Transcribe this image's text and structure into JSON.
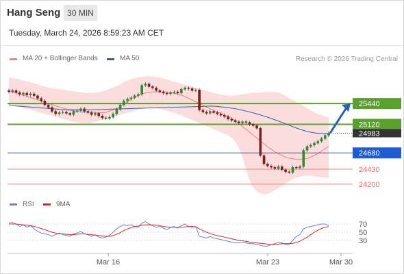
{
  "header": {
    "title": "Hang Seng",
    "timeframe": "30 MIN",
    "datetime": "Tuesday, March 24, 2026 8:59:23 AM CET"
  },
  "legend": {
    "bollinger": "MA 20 + Bollinger Bands",
    "ma50": "MA 50",
    "copyright": "Research © 2026 Trading Central"
  },
  "rsi_legend": {
    "rsi": "RSI",
    "ma": "9MA"
  },
  "colors": {
    "bollinger": "#f47e7e",
    "ma50": "#2b5fa6",
    "resistance": "#5aa02c",
    "pivot": "#1e5bd6",
    "support": "#e56a6a",
    "candle_up": "#2e8b2e",
    "candle_down": "#7a1f1f",
    "arrow": "#2a62b0",
    "last_price": "#333333",
    "rsi_line": "#5b86d9",
    "rsi_ma": "#e02424"
  },
  "chart_data": [
    {
      "type": "candlestick",
      "title": "Hang Seng",
      "timeframe": "30 MIN",
      "x_tick_labels": [
        "Mar 16",
        "Mar 23",
        "Mar 30"
      ],
      "ylim": [
        24050,
        26000
      ],
      "levels": [
        {
          "label": "25440",
          "value": 25440,
          "kind": "resistance"
        },
        {
          "label": "25120",
          "value": 25120,
          "kind": "resistance"
        },
        {
          "label": "24983",
          "value": 24983,
          "kind": "last"
        },
        {
          "label": "24680",
          "value": 24680,
          "kind": "pivot"
        },
        {
          "label": "24430",
          "value": 24430,
          "kind": "support"
        },
        {
          "label": "24200",
          "value": 24200,
          "kind": "support"
        }
      ],
      "close": [
        25620,
        25640,
        25610,
        25580,
        25600,
        25570,
        25590,
        25560,
        25520,
        25480,
        25420,
        25380,
        25320,
        25280,
        25300,
        25310,
        25290,
        25270,
        25320,
        25330,
        25360,
        25320,
        25300,
        25270,
        25290,
        25250,
        25220,
        25210,
        25230,
        25280,
        25350,
        25420,
        25480,
        25510,
        25530,
        25560,
        25580,
        25720,
        25740,
        25700,
        25680,
        25640,
        25620,
        25600,
        25590,
        25610,
        25620,
        25600,
        25660,
        25680,
        25670,
        25640,
        25650,
        25340,
        25310,
        25290,
        25320,
        25300,
        25280,
        25260,
        25240,
        25200,
        25180,
        25160,
        25140,
        25160,
        25150,
        25120,
        25100,
        25060,
        24640,
        24510,
        24480,
        24460,
        24440,
        24470,
        24420,
        24390,
        24380,
        24460,
        24450,
        24470,
        24720,
        24780,
        24800,
        24830,
        24860,
        24900,
        24950,
        24983
      ],
      "bb_mid": [
        25640,
        25620,
        25600,
        25580,
        25560,
        25540,
        25520,
        25500,
        25480,
        25460,
        25440,
        25420,
        25400,
        25380,
        25360,
        25340,
        25330,
        25320,
        25310,
        25310,
        25310,
        25310,
        25300,
        25300,
        25300,
        25320,
        25340,
        25360,
        25400,
        25440,
        25480,
        25520,
        25550,
        25580,
        25600,
        25610,
        25620,
        25620,
        25620,
        25620,
        25610,
        25600,
        25590,
        25570,
        25550,
        25520,
        25490,
        25460,
        25430,
        25400,
        25370,
        25340,
        25310,
        25290,
        25260,
        25230,
        25200,
        25160,
        25110,
        25060,
        25010,
        24960,
        24910,
        24860,
        24810,
        24760,
        24720,
        24680,
        24650,
        24620,
        24600,
        24590,
        24580,
        24580,
        24590,
        24600,
        24630,
        24660,
        24700,
        24740,
        24780
      ],
      "bb_upper": [
        25840,
        25830,
        25820,
        25800,
        25780,
        25760,
        25740,
        25720,
        25700,
        25680,
        25670,
        25660,
        25650,
        25640,
        25630,
        25620,
        25610,
        25600,
        25600,
        25610,
        25620,
        25640,
        25660,
        25690,
        25720,
        25760,
        25800,
        25820,
        25840,
        25850,
        25860,
        25860,
        25850,
        25840,
        25820,
        25800,
        25780,
        25760,
        25740,
        25720,
        25700,
        25680,
        25660,
        25640,
        25620,
        25600,
        25580,
        25570,
        25560,
        25560,
        25570,
        25580,
        25590,
        25600,
        25600,
        25610,
        25620,
        25620,
        25620,
        25610,
        25580,
        25540,
        25500,
        25460,
        25420,
        25380,
        25340,
        25300,
        25270,
        25250,
        25230
      ],
      "bb_lower": [
        25440,
        25420,
        25400,
        25380,
        25360,
        25340,
        25320,
        25300,
        25280,
        25260,
        25240,
        25220,
        25200,
        25180,
        25160,
        25150,
        25140,
        25140,
        25140,
        25160,
        25180,
        25200,
        25220,
        25240,
        25260,
        25280,
        25300,
        25320,
        25340,
        25360,
        25380,
        25380,
        25370,
        25360,
        25340,
        25320,
        25300,
        25280,
        25250,
        25220,
        25190,
        25160,
        25130,
        25100,
        25070,
        25040,
        25010,
        24980,
        24950,
        24900,
        24800,
        24650,
        24400,
        24200,
        24100,
        24060,
        24040,
        24060,
        24100,
        24140,
        24180,
        24230,
        24270,
        24300,
        24320,
        24330,
        24330,
        24320,
        24310,
        24300,
        24300,
        24310,
        24320,
        24330,
        24340,
        24350,
        24360,
        24380,
        24390,
        24400,
        24410
      ],
      "ma50": [
        25420,
        25410,
        25400,
        25395,
        25390,
        25385,
        25380,
        25375,
        25370,
        25365,
        25360,
        25355,
        25350,
        25348,
        25346,
        25344,
        25342,
        25340,
        25342,
        25344,
        25346,
        25348,
        25350,
        25352,
        25354,
        25356,
        25358,
        25360,
        25362,
        25364,
        25366,
        25368,
        25370,
        25372,
        25374,
        25376,
        25378,
        25380,
        25382,
        25384,
        25386,
        25388,
        25390,
        25392,
        25394,
        25396,
        25398,
        25400,
        25395,
        25390,
        25382,
        25374,
        25364,
        25352,
        25338,
        25322,
        25305,
        25287,
        25268,
        25248,
        25226,
        25203,
        25179,
        25154,
        25128,
        25102,
        25077,
        25052,
        25030,
        25010,
        24995,
        24985,
        24980,
        24978,
        24980
      ],
      "rsi_ylim": [
        10,
        90
      ],
      "rsi_ticks": [
        70,
        50,
        30
      ],
      "rsi": [
        72,
        74,
        70,
        64,
        68,
        62,
        66,
        58,
        52,
        48,
        46,
        44,
        40,
        44,
        48,
        44,
        42,
        40,
        46,
        48,
        52,
        46,
        44,
        40,
        44,
        38,
        36,
        38,
        42,
        50,
        58,
        64,
        68,
        66,
        68,
        64,
        62,
        72,
        76,
        70,
        66,
        62,
        64,
        60,
        56,
        62,
        64,
        60,
        66,
        70,
        64,
        62,
        64,
        40,
        38,
        36,
        40,
        36,
        34,
        32,
        30,
        28,
        26,
        24,
        24,
        26,
        24,
        22,
        22,
        20,
        18,
        16,
        16,
        20,
        22,
        26,
        24,
        20,
        20,
        30,
        40,
        44,
        58,
        62,
        64,
        66,
        68,
        70,
        70,
        66
      ],
      "rsi_ma": [
        70,
        70,
        70,
        69,
        68,
        67,
        66,
        64,
        62,
        59,
        56,
        53,
        50,
        48,
        46,
        46,
        45,
        44,
        44,
        45,
        46,
        46,
        45,
        44,
        43,
        42,
        41,
        40,
        40,
        42,
        45,
        49,
        54,
        58,
        61,
        64,
        65,
        67,
        68,
        68,
        68,
        67,
        66,
        64,
        63,
        62,
        62,
        62,
        62,
        63,
        64,
        64,
        63,
        58,
        54,
        50,
        47,
        44,
        42,
        40,
        38,
        36,
        34,
        32,
        30,
        29,
        28,
        26,
        25,
        24,
        23,
        22,
        21,
        20,
        20,
        21,
        22,
        22,
        22,
        23,
        25,
        28,
        33,
        38,
        44,
        50,
        55,
        59,
        62,
        64
      ]
    }
  ]
}
